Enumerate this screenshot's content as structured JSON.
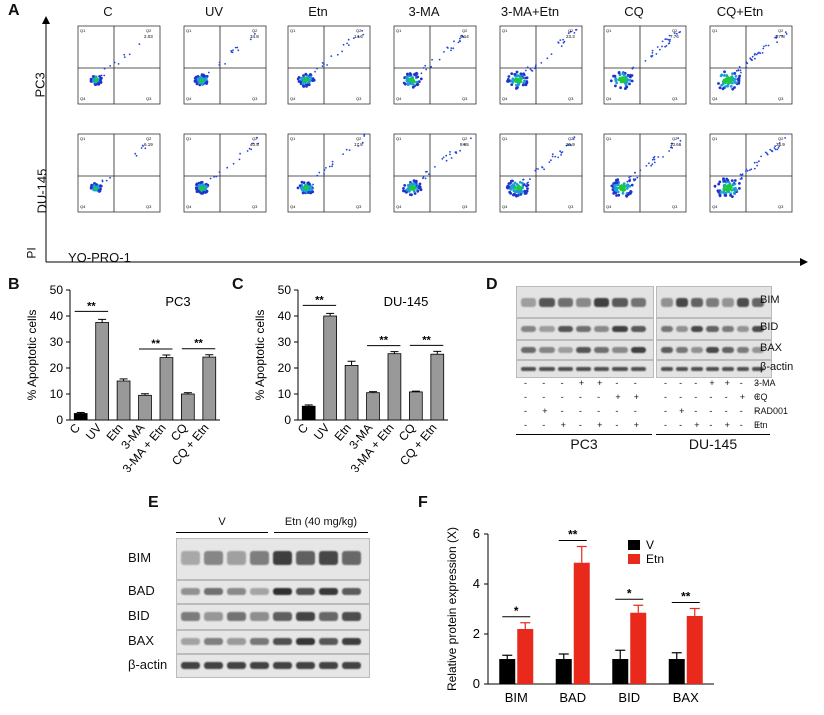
{
  "panels": {
    "A": {
      "letter": "A",
      "conditions": [
        "C",
        "UV",
        "Etn",
        "3-MA",
        "3-MA+Etn",
        "CQ",
        "CQ+Etn"
      ],
      "rows": [
        "PC3",
        "DU-145"
      ],
      "y_axis_label": "PI",
      "x_axis_label": "YO-PRO-1",
      "quadrant_labels": [
        "Q1",
        "Q2",
        "Q3",
        "Q4"
      ],
      "pc3_q2": [
        "2.03",
        "34.8",
        "14.6",
        "6.14",
        "23.3",
        "7.76",
        "27.8"
      ],
      "du145_q2": [
        "6.19",
        "40.5",
        "17.8",
        "8.65",
        "25.9",
        "10.66",
        "25.9"
      ]
    },
    "B": {
      "letter": "B",
      "chart_data": {
        "type": "bar",
        "title": "PC3",
        "ylabel": "% Apoptotic cells",
        "categories": [
          "C",
          "UV",
          "Etn",
          "3-MA",
          "3-MA + Etn",
          "CQ",
          "CQ + Etn"
        ],
        "values": [
          2.5,
          37.5,
          15,
          9.5,
          24,
          10,
          24.2
        ],
        "errors": [
          0.4,
          1.2,
          0.8,
          0.6,
          1.0,
          0.5,
          0.9
        ],
        "ylim": [
          0,
          50
        ],
        "yticks": [
          "0",
          "10",
          "20",
          "30",
          "40",
          "50"
        ],
        "significance": [
          "**",
          "**",
          "**"
        ]
      }
    },
    "C": {
      "letter": "C",
      "chart_data": {
        "type": "bar",
        "title": "DU-145",
        "ylabel": "% Apoptotic cells",
        "categories": [
          "C",
          "UV",
          "Etn",
          "3-MA",
          "3-MA + Etn",
          "CQ",
          "CQ + Etn"
        ],
        "values": [
          5.3,
          40,
          21,
          10.5,
          25.5,
          10.8,
          25.3
        ],
        "errors": [
          0.5,
          1.0,
          1.6,
          0.4,
          0.8,
          0.3,
          1.1
        ],
        "ylim": [
          0,
          50
        ],
        "yticks": [
          "0",
          "10",
          "20",
          "30",
          "40",
          "50"
        ],
        "significance": [
          "**",
          "**",
          "**"
        ]
      }
    },
    "D": {
      "letter": "D",
      "proteins": [
        "BIM",
        "BID",
        "BAX",
        "β-actin"
      ],
      "treatments": [
        {
          "name": "3-MA",
          "pc3": [
            "-",
            "-",
            "-",
            "+",
            "+",
            "-",
            "-"
          ],
          "du": [
            "-",
            "-",
            "-",
            "+",
            "+",
            "-",
            "-"
          ]
        },
        {
          "name": "CQ",
          "pc3": [
            "-",
            "-",
            "-",
            "-",
            "-",
            "+",
            "+"
          ],
          "du": [
            "-",
            "-",
            "-",
            "-",
            "-",
            "+",
            "+"
          ]
        },
        {
          "name": "RAD001",
          "pc3": [
            "-",
            "+",
            "-",
            "-",
            "-",
            "-",
            "-"
          ],
          "du": [
            "-",
            "+",
            "-",
            "-",
            "-",
            "-",
            "-"
          ]
        },
        {
          "name": "Etn",
          "pc3": [
            "-",
            "-",
            "+",
            "-",
            "+",
            "-",
            "+"
          ],
          "du": [
            "-",
            "-",
            "+",
            "-",
            "+",
            "-",
            "+"
          ]
        }
      ],
      "groups": [
        "PC3",
        "DU-145"
      ]
    },
    "E": {
      "letter": "E",
      "groups": [
        "V",
        "Etn (40 mg/kg)"
      ],
      "proteins": [
        "BIM",
        "BAD",
        "BID",
        "BAX",
        "β-actin"
      ]
    },
    "F": {
      "letter": "F",
      "chart_data": {
        "type": "bar",
        "ylabel": "Relative protein expression (X)",
        "categories": [
          "BIM",
          "BAD",
          "BID",
          "BAX"
        ],
        "series": [
          {
            "name": "V",
            "values": [
              1.0,
              1.0,
              1.0,
              1.0
            ],
            "errors": [
              0.15,
              0.2,
              0.35,
              0.25
            ],
            "color": "#000000"
          },
          {
            "name": "Etn",
            "values": [
              2.2,
              4.85,
              2.85,
              2.72
            ],
            "errors": [
              0.25,
              0.65,
              0.3,
              0.3
            ],
            "color": "#e8291c"
          }
        ],
        "ylim": [
          0,
          6
        ],
        "yticks": [
          "0",
          "2",
          "4",
          "6"
        ],
        "significance": [
          "*",
          "**",
          "*",
          "**"
        ],
        "legend": "top-left"
      }
    }
  }
}
